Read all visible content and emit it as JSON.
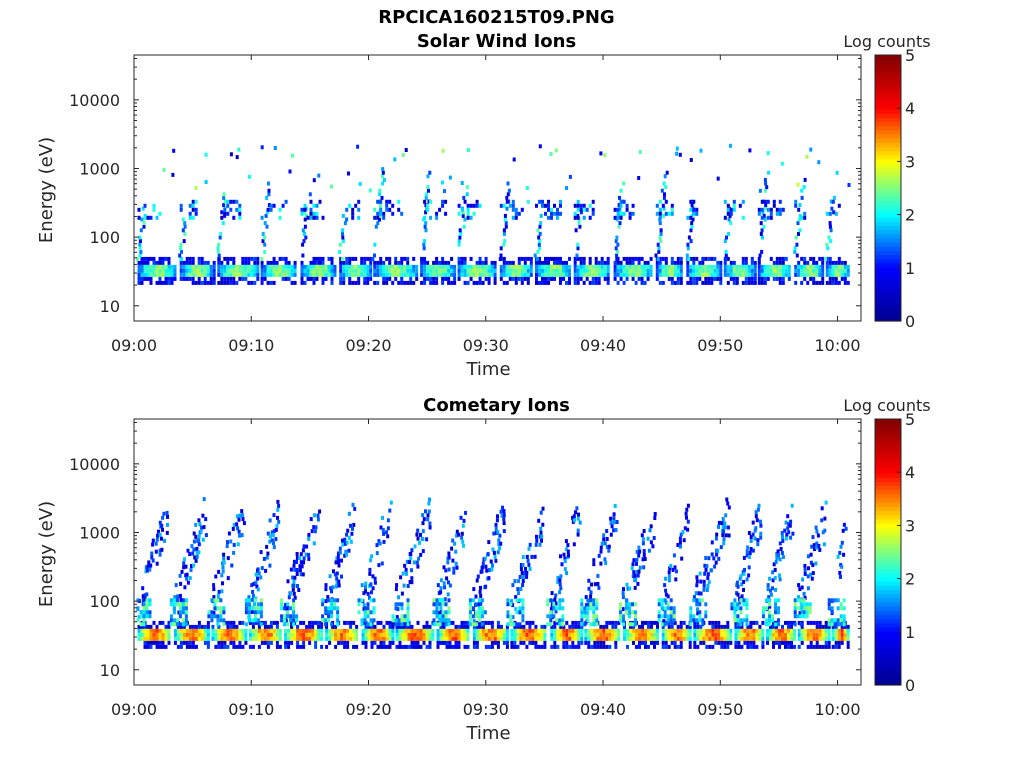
{
  "title": "RPCICA160215T09.PNG",
  "colormap": [
    "#00008f",
    "#0000ff",
    "#00ffff",
    "#ffff00",
    "#ff0000",
    "#800000"
  ],
  "chart_data": [
    {
      "type": "heatmap",
      "title": "Solar Wind Ions",
      "xlabel": "Time",
      "ylabel": "Energy (eV)",
      "xlim_minutes": [
        0,
        62
      ],
      "x_ticks": [
        {
          "minute": 0,
          "label": "09:00"
        },
        {
          "minute": 10,
          "label": "09:10"
        },
        {
          "minute": 20,
          "label": "09:20"
        },
        {
          "minute": 30,
          "label": "09:30"
        },
        {
          "minute": 40,
          "label": "09:40"
        },
        {
          "minute": 50,
          "label": "09:50"
        },
        {
          "minute": 60,
          "label": "10:00"
        }
      ],
      "y_scale": "log",
      "ylim": [
        6,
        45000
      ],
      "y_ticks": [
        {
          "value": 10,
          "label": "10"
        },
        {
          "value": 100,
          "label": "100"
        },
        {
          "value": 1000,
          "label": "1000"
        },
        {
          "value": 10000,
          "label": "10000"
        }
      ],
      "colorbar": {
        "label": "Log counts",
        "range": [
          0,
          5
        ],
        "ticks": [
          "0",
          "1",
          "2",
          "3",
          "4",
          "5"
        ]
      },
      "sweep_start_minutes": [
        0.3,
        3.9,
        7.1,
        10.8,
        14.2,
        17.5,
        20.4,
        24.4,
        27.6,
        31.2,
        34.2,
        37.5,
        40.9,
        44.5,
        47.1,
        50.3,
        53.2,
        56.3,
        59.0
      ],
      "features": {
        "main_band_eV": [
          25,
          45
        ],
        "main_band_peak_log_counts": 2.5,
        "secondary_band_eV": [
          180,
          350
        ],
        "secondary_band_peak_log_counts": 1.8
      }
    },
    {
      "type": "heatmap",
      "title": "Cometary Ions",
      "xlabel": "Time",
      "ylabel": "Energy (eV)",
      "xlim_minutes": [
        0,
        62
      ],
      "x_ticks": [
        {
          "minute": 0,
          "label": "09:00"
        },
        {
          "minute": 10,
          "label": "09:10"
        },
        {
          "minute": 20,
          "label": "09:20"
        },
        {
          "minute": 30,
          "label": "09:30"
        },
        {
          "minute": 40,
          "label": "09:40"
        },
        {
          "minute": 50,
          "label": "09:50"
        },
        {
          "minute": 60,
          "label": "10:00"
        }
      ],
      "y_scale": "log",
      "ylim": [
        6,
        45000
      ],
      "y_ticks": [
        {
          "value": 10,
          "label": "10"
        },
        {
          "value": 100,
          "label": "100"
        },
        {
          "value": 1000,
          "label": "1000"
        },
        {
          "value": 10000,
          "label": "10000"
        }
      ],
      "colorbar": {
        "label": "Log counts",
        "range": [
          0,
          5
        ],
        "ticks": [
          "0",
          "1",
          "2",
          "3",
          "4",
          "5"
        ]
      },
      "sweep_start_minutes": [
        0.3,
        3.4,
        6.6,
        9.8,
        12.8,
        16.3,
        19.4,
        22.3,
        25.8,
        28.9,
        32.1,
        35.5,
        38.4,
        41.7,
        45.0,
        47.7,
        51.2,
        53.9,
        56.6,
        59.5
      ],
      "features": {
        "main_band_eV": [
          25,
          45
        ],
        "main_band_peak_log_counts": 3.6,
        "sweep_max_eV": 2500
      }
    }
  ]
}
